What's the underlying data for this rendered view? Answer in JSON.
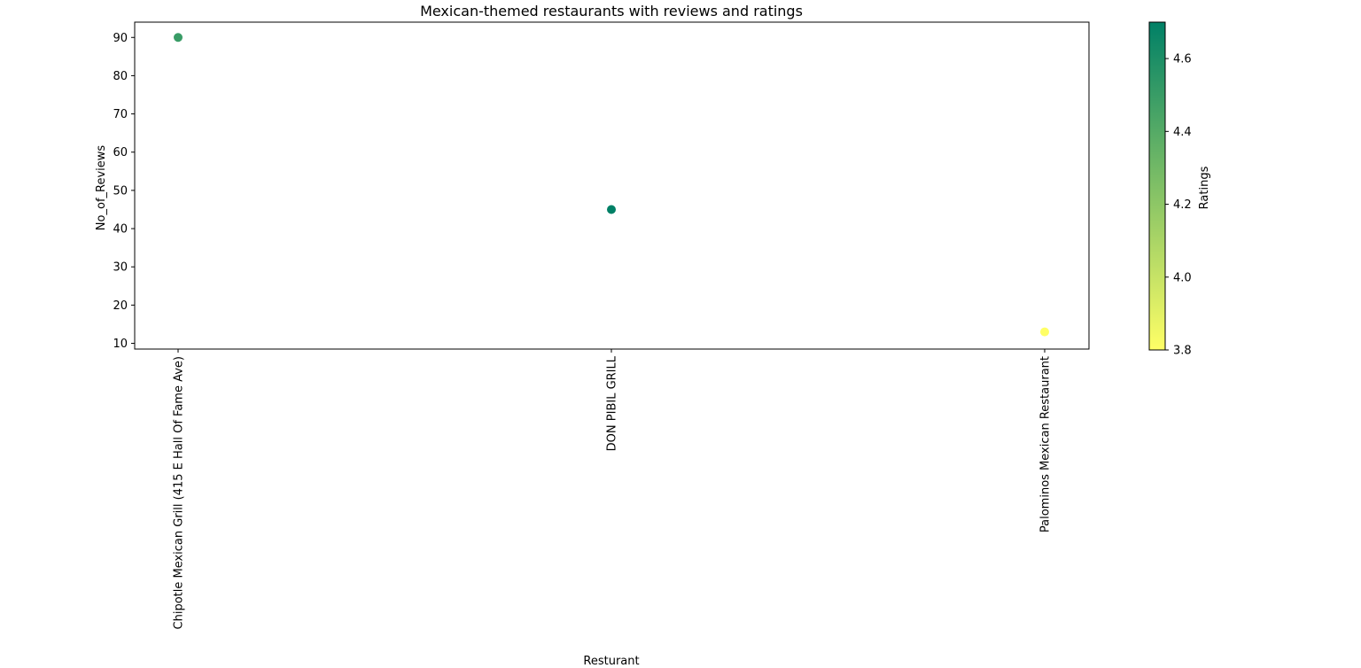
{
  "chart_data": {
    "type": "scatter",
    "title": "Mexican-themed restaurants with reviews and ratings",
    "xlabel": "Resturant",
    "ylabel": "No_of_Reviews",
    "categories": [
      "Chipotle Mexican Grill (415 E Hall Of Fame Ave)",
      "DON PIBIL GRILL",
      "Palominos Mexican Restaurant"
    ],
    "values": [
      90,
      45,
      13
    ],
    "ratings": [
      4.5,
      4.7,
      3.8
    ],
    "ylim": [
      8.5,
      94
    ],
    "yticks": [
      10,
      20,
      30,
      40,
      50,
      60,
      70,
      80,
      90
    ],
    "grid": false,
    "colorbar": {
      "label": "Ratings",
      "range": [
        3.8,
        4.7
      ],
      "ticks": [
        "3.8",
        "4.0",
        "4.2",
        "4.4",
        "4.6"
      ],
      "colormap": "summer_r",
      "colors": [
        "#ffff66",
        "#008066"
      ]
    }
  }
}
